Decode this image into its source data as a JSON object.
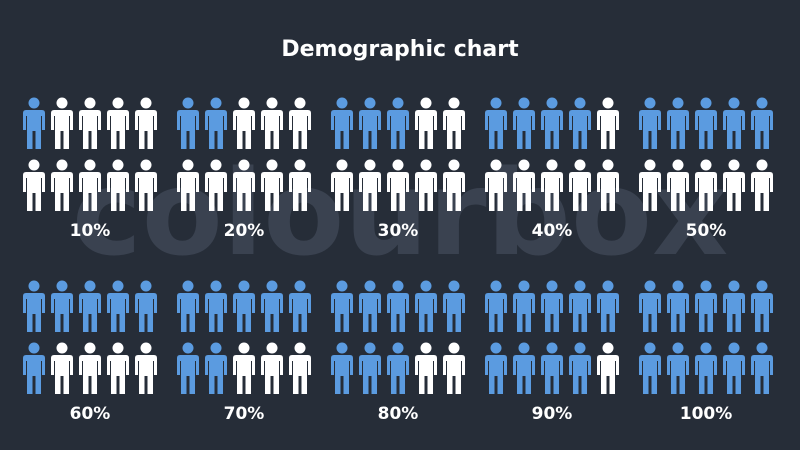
{
  "chart_data": {
    "type": "pictogram",
    "title": "Demographic chart",
    "watermark": "colourbox",
    "values": [
      10,
      20,
      30,
      40,
      50,
      60,
      70,
      80,
      90,
      100
    ],
    "value_labels": [
      "10%",
      "20%",
      "30%",
      "40%",
      "50%",
      "60%",
      "70%",
      "80%",
      "90%",
      "100%"
    ],
    "color": "#5b9be0",
    "base_color": "#ffffff"
  }
}
